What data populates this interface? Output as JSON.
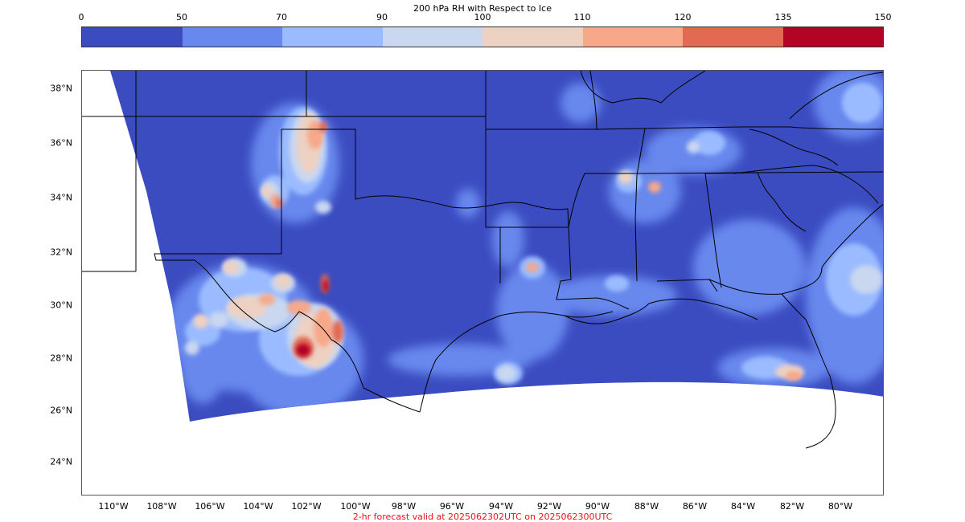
{
  "title": "200 hPa RH with Respect to Ice",
  "colorbar": {
    "ticks": [
      "0",
      "50",
      "70",
      "90",
      "100",
      "110",
      "120",
      "135",
      "150"
    ],
    "colors": [
      "#3b4cc0",
      "#6788ee",
      "#9abbff",
      "#c9d7f0",
      "#edd1c2",
      "#f7a889",
      "#e26952",
      "#b40426"
    ]
  },
  "map": {
    "lat_labels": [
      "38°N",
      "36°N",
      "34°N",
      "32°N",
      "30°N",
      "28°N",
      "26°N",
      "24°N"
    ],
    "lon_labels": [
      "110°W",
      "108°W",
      "106°W",
      "104°W",
      "102°W",
      "100°W",
      "98°W",
      "96°W",
      "94°W",
      "92°W",
      "90°W",
      "88°W",
      "86°W",
      "84°W",
      "82°W",
      "80°W"
    ],
    "background_color": "#3b4cc0",
    "border_color": "#000000"
  },
  "footer": "2-hr forecast valid at 2025062302UTC on 2025062300UTC"
}
